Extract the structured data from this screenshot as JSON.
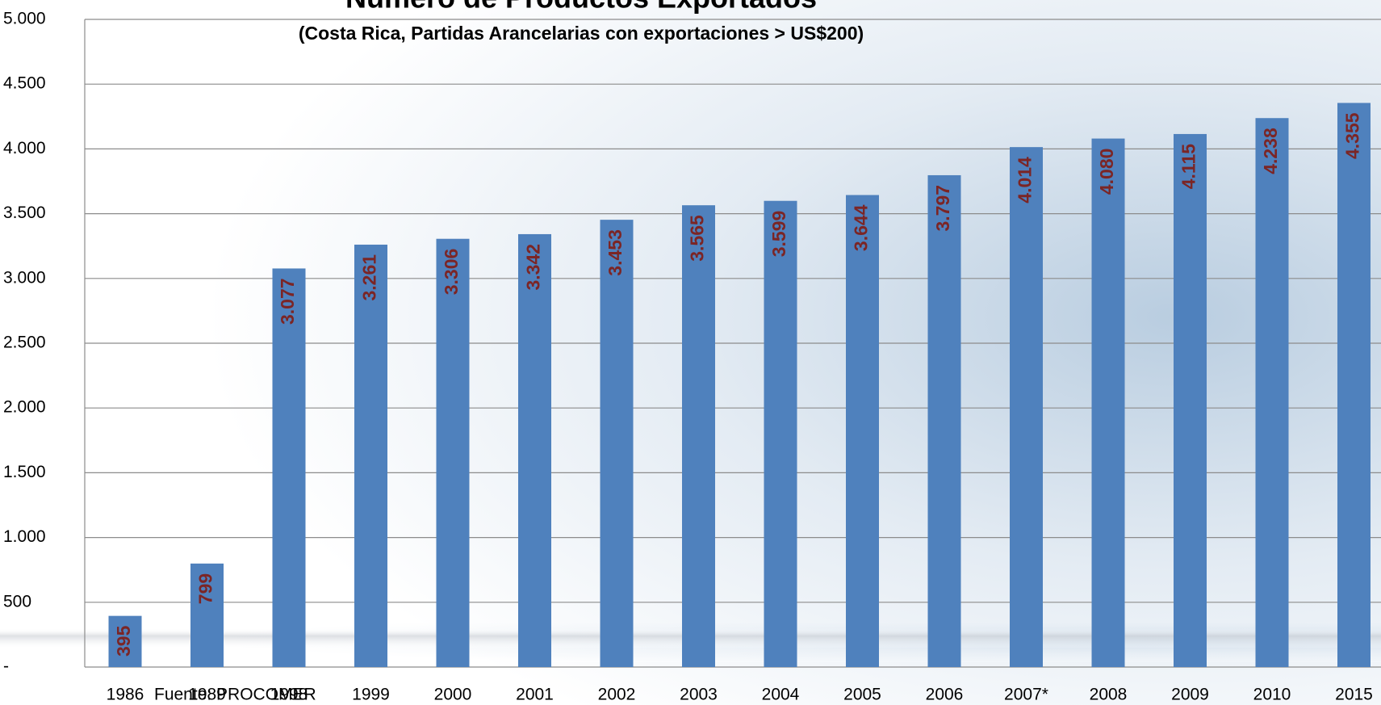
{
  "chart_data": {
    "type": "bar",
    "title": "Número de Productos Exportados",
    "subtitle": "(Costa Rica, Partidas Arancelarias con exportaciones > US$200)",
    "source": "Fuente: PROCOMER",
    "categories": [
      "1986",
      "1989",
      "1998",
      "1999",
      "2000",
      "2001",
      "2002",
      "2003",
      "2004",
      "2005",
      "2006",
      "2007*",
      "2008",
      "2009",
      "2010",
      "2015"
    ],
    "values": [
      395,
      799,
      3077,
      3261,
      3306,
      3342,
      3453,
      3565,
      3599,
      3644,
      3797,
      4014,
      4080,
      4115,
      4238,
      4355
    ],
    "value_labels": [
      "395",
      "799",
      "3.077",
      "3.261",
      "3.306",
      "3.342",
      "3.453",
      "3.565",
      "3.599",
      "3.644",
      "3.797",
      "4.014",
      "4.080",
      "4.115",
      "4.238",
      "4.355"
    ],
    "color": "#4f81bd",
    "label_color": "#7b2525",
    "ylim": [
      0,
      5000
    ],
    "yticks": [
      {
        "value": 0,
        "label": "-"
      },
      500,
      {
        "value": 1000,
        "label": "1.000"
      },
      {
        "value": 1500,
        "label": "1.500"
      },
      {
        "value": 2000,
        "label": "2.000"
      },
      {
        "value": 2500,
        "label": "2.500"
      },
      {
        "value": 3000,
        "label": "3.000"
      },
      {
        "value": 3500,
        "label": "3.500"
      },
      {
        "value": 4000,
        "label": "4.000"
      },
      {
        "value": 4500,
        "label": "4.500"
      },
      {
        "value": 5000,
        "label": "5.000"
      }
    ],
    "grid": true
  }
}
